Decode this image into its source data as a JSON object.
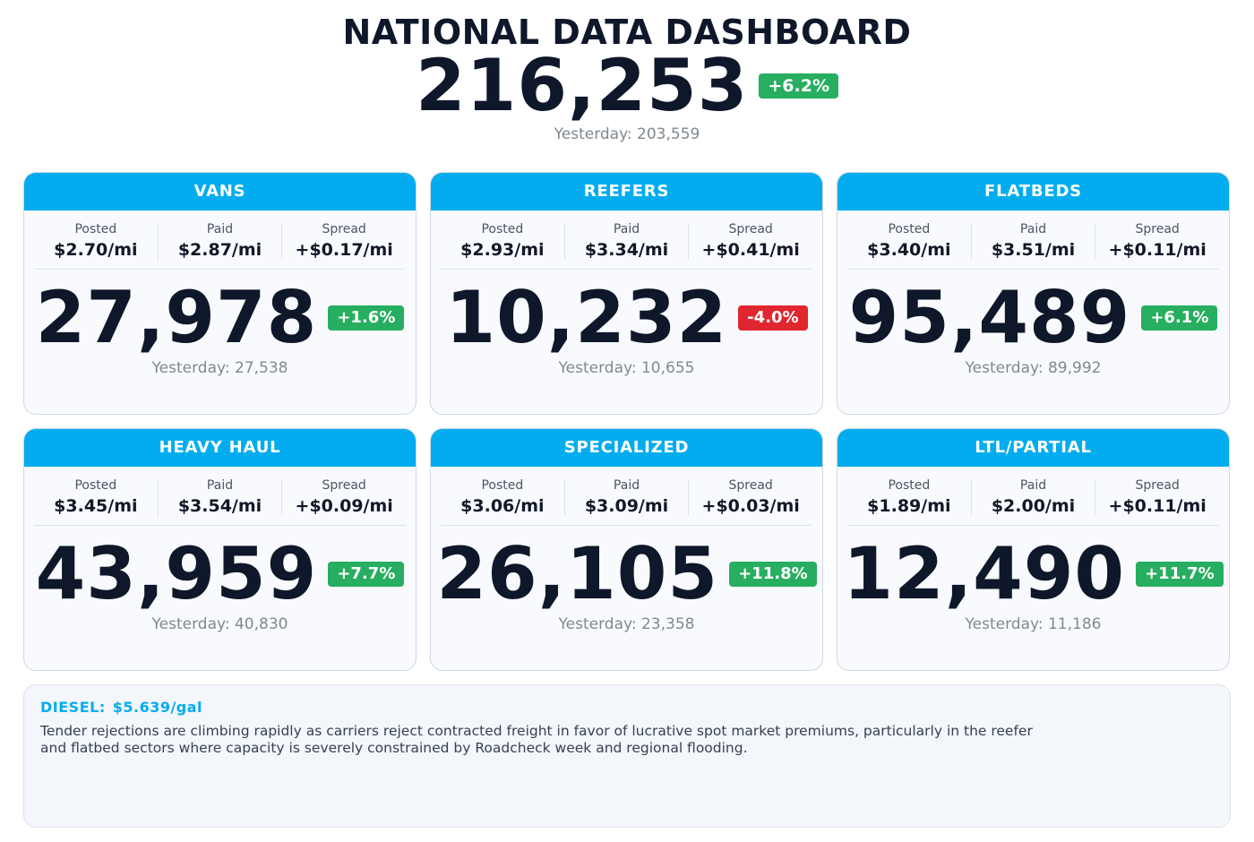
{
  "dashboard": {
    "title": "NATIONAL DATA DASHBOARD",
    "total": "216,253",
    "total_change": "+6.2%",
    "total_change_dir": "up",
    "total_yesterday": "Yesterday: 203,559"
  },
  "labels": {
    "posted": "Posted",
    "paid": "Paid",
    "spread": "Spread"
  },
  "cards": [
    {
      "name": "VANS",
      "posted": "$2.70/mi",
      "paid": "$2.87/mi",
      "spread": "+$0.17/mi",
      "count": "27,978",
      "change": "+1.6%",
      "dir": "up",
      "yesterday": "Yesterday: 27,538"
    },
    {
      "name": "REEFERS",
      "posted": "$2.93/mi",
      "paid": "$3.34/mi",
      "spread": "+$0.41/mi",
      "count": "10,232",
      "change": "-4.0%",
      "dir": "down",
      "yesterday": "Yesterday: 10,655"
    },
    {
      "name": "FLATBEDS",
      "posted": "$3.40/mi",
      "paid": "$3.51/mi",
      "spread": "+$0.11/mi",
      "count": "95,489",
      "change": "+6.1%",
      "dir": "up",
      "yesterday": "Yesterday: 89,992"
    },
    {
      "name": "HEAVY HAUL",
      "posted": "$3.45/mi",
      "paid": "$3.54/mi",
      "spread": "+$0.09/mi",
      "count": "43,959",
      "change": "+7.7%",
      "dir": "up",
      "yesterday": "Yesterday: 40,830"
    },
    {
      "name": "SPECIALIZED",
      "posted": "$3.06/mi",
      "paid": "$3.09/mi",
      "spread": "+$0.03/mi",
      "count": "26,105",
      "change": "+11.8%",
      "dir": "up",
      "yesterday": "Yesterday: 23,358"
    },
    {
      "name": "LTL/PARTIAL",
      "posted": "$1.89/mi",
      "paid": "$2.00/mi",
      "spread": "+$0.11/mi",
      "count": "12,490",
      "change": "+11.7%",
      "dir": "up",
      "yesterday": "Yesterday: 11,186"
    }
  ],
  "note": {
    "diesel_label": "DIESEL:",
    "diesel_value": "$5.639/gal",
    "text": "Tender rejections are climbing rapidly as carriers reject contracted freight in favor of lucrative spot market premiums, particularly in the reefer and flatbed sectors where capacity is severely constrained by Roadcheck week and regional flooding."
  },
  "colors": {
    "accent": "#02acef",
    "up": "#27ae60",
    "down": "#e0262e"
  }
}
